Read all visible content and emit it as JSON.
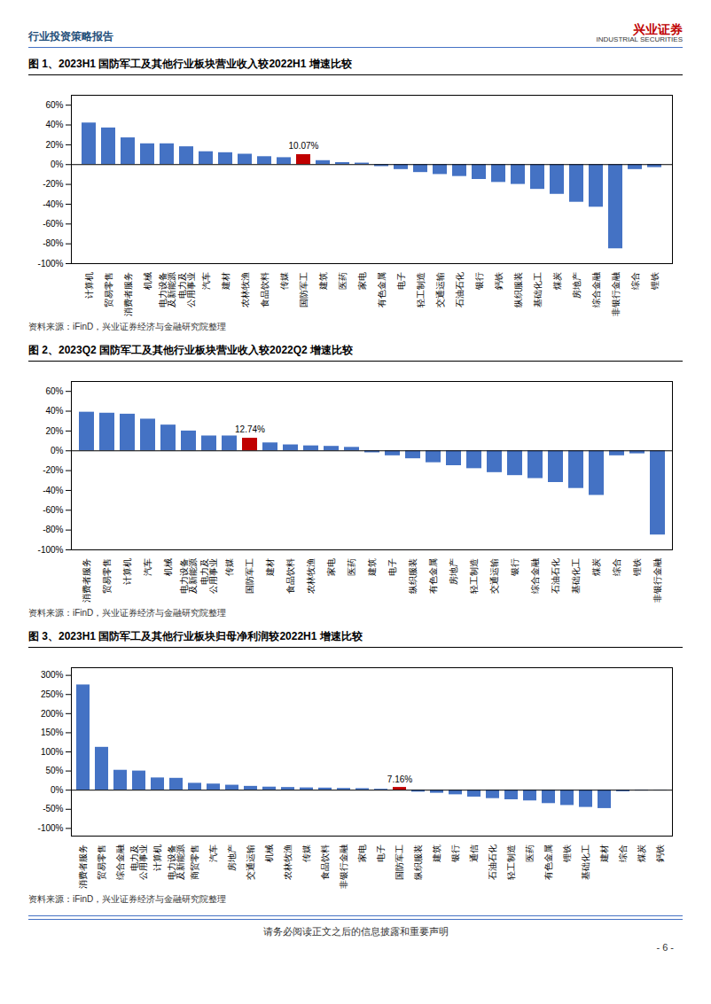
{
  "header": "行业投资策略报告",
  "logo": [
    "兴业证券",
    "INDUSTRIAL SECURITIES"
  ],
  "footer": "请务必阅读正文之后的信息披露和重要声明",
  "page_number": "- 6 -",
  "chart_data": [
    {
      "type": "bar",
      "title": "图 1、2023H1 国防军工及其他行业板块营业收入较2022H1 增速比较",
      "source": "资料来源：iFinD，兴业证券经济与金融研究院整理",
      "categories": [
        "计算机",
        "贸易零售",
        "消费者服务",
        "机械",
        "电力设备\n及新能源",
        "电力及\n公用事业",
        "汽车",
        "建材",
        "农林牧渔",
        "食品饮料",
        "传媒",
        "国防军工",
        "建筑",
        "医药",
        "家电",
        "有色金属",
        "电子",
        "轻工制造",
        "交通运输",
        "石油石化",
        "银行",
        "鈣铁",
        "纵织服装",
        "基础化工",
        "煤炭",
        "房地产",
        "综合金融",
        "非银行金融",
        "综合",
        "锂铁"
      ],
      "values": [
        42,
        37,
        27,
        21,
        21,
        18,
        13,
        12,
        10.5,
        8,
        7,
        10.07,
        4,
        2,
        1.5,
        -2,
        -5,
        -8,
        -10,
        -12,
        -15,
        -18,
        -20,
        -25,
        -30,
        -38,
        -43,
        -85,
        -5,
        -3
      ],
      "colors": [
        "#4472c4",
        "#4472c4",
        "#4472c4",
        "#4472c4",
        "#4472c4",
        "#4472c4",
        "#4472c4",
        "#4472c4",
        "#4472c4",
        "#4472c4",
        "#4472c4",
        "#c00000",
        "#4472c4",
        "#4472c4",
        "#4472c4",
        "#4472c4",
        "#4472c4",
        "#4472c4",
        "#4472c4",
        "#4472c4",
        "#4472c4",
        "#4472c4",
        "#4472c4",
        "#4472c4",
        "#4472c4",
        "#4472c4",
        "#4472c4",
        "#4472c4",
        "#4472c4",
        "#4472c4"
      ],
      "annotations": [
        {
          "text": "10.07%",
          "category": "国防军工"
        }
      ],
      "ylim": [
        -100,
        70
      ],
      "yticks": [
        {
          "value": -100,
          "label": "-100%"
        },
        {
          "value": -80,
          "label": "-80%"
        },
        {
          "value": -60,
          "label": "-60%"
        },
        {
          "value": -40,
          "label": "-40%"
        },
        {
          "value": -20,
          "label": "-20%"
        },
        {
          "value": 0,
          "label": "0%"
        },
        {
          "value": 20,
          "label": "20%"
        },
        {
          "value": 40,
          "label": "40%"
        },
        {
          "value": 60,
          "label": "60%"
        }
      ],
      "grid": false
    },
    {
      "type": "bar",
      "title": "图 2、2023Q2 国防军工及其他行业板块营业收入较2022Q2 增速比较",
      "source": "资料来源：iFinD，兴业证券经济与金融研究院整理",
      "categories": [
        "消费者服务",
        "贸易零售",
        "计算机",
        "汽车",
        "机械",
        "电力设备\n及新能源",
        "电力及\n公用事业",
        "传媒",
        "国防军工",
        "建材",
        "食品饮料",
        "农林牧渔",
        "家电",
        "医药",
        "建筑",
        "电子",
        "纵织服装",
        "有色金属",
        "房地产",
        "轻工制造",
        "交通运输",
        "银行",
        "综合金融",
        "石油石化",
        "基础化工",
        "煤炭",
        "综合",
        "锂铁",
        "非银行金融"
      ],
      "values": [
        39,
        38,
        37,
        32,
        26,
        20,
        15,
        15,
        12.74,
        8,
        6,
        5,
        4.5,
        3.5,
        -2,
        -5,
        -8,
        -12,
        -15,
        -18,
        -22,
        -25,
        -28,
        -32,
        -38,
        -45,
        -5,
        -3,
        -85
      ],
      "colors": [
        "#4472c4",
        "#4472c4",
        "#4472c4",
        "#4472c4",
        "#4472c4",
        "#4472c4",
        "#4472c4",
        "#4472c4",
        "#c00000",
        "#4472c4",
        "#4472c4",
        "#4472c4",
        "#4472c4",
        "#4472c4",
        "#4472c4",
        "#4472c4",
        "#4472c4",
        "#4472c4",
        "#4472c4",
        "#4472c4",
        "#4472c4",
        "#4472c4",
        "#4472c4",
        "#4472c4",
        "#4472c4",
        "#4472c4",
        "#4472c4",
        "#4472c4",
        "#4472c4"
      ],
      "annotations": [
        {
          "text": "12.74%",
          "category": "国防军工"
        }
      ],
      "ylim": [
        -100,
        70
      ],
      "yticks": [
        {
          "value": -100,
          "label": "-100%"
        },
        {
          "value": -80,
          "label": "-80%"
        },
        {
          "value": -60,
          "label": "-60%"
        },
        {
          "value": -40,
          "label": "-40%"
        },
        {
          "value": -20,
          "label": "-20%"
        },
        {
          "value": 0,
          "label": "0%"
        },
        {
          "value": 20,
          "label": "20%"
        },
        {
          "value": 40,
          "label": "40%"
        },
        {
          "value": 60,
          "label": "60%"
        }
      ],
      "grid": false
    },
    {
      "type": "bar",
      "title": "图 3、2023H1 国防军工及其他行业板块归母净利润较2022H1 增速比较",
      "source": "资料来源：iFinD，兴业证券经济与金融研究院整理",
      "categories": [
        "消费者服务",
        "贸易零售",
        "综合金融",
        "电力及\n公用事业",
        "计算机",
        "电力设备\n及新能源",
        "商贸零售",
        "汽车",
        "房地产",
        "交通运输",
        "机械",
        "农林牧渔",
        "传媒",
        "食品饮料",
        "非银行金融",
        "家电",
        "电子",
        "国防军工",
        "纵织服装",
        "建筑",
        "银行",
        "通信",
        "石油石化",
        "轻工制造",
        "医药",
        "有色金属",
        "锂铁",
        "基础化工",
        "建材",
        "综合",
        "煤炭",
        "鈣铁"
      ],
      "values": [
        275,
        112,
        52,
        50,
        32,
        31,
        18,
        16,
        13,
        10,
        8,
        7,
        6,
        5.5,
        4.5,
        4,
        2.5,
        7.16,
        -5,
        -8,
        -12,
        -18,
        -22,
        -25,
        -28,
        -35,
        -40,
        -45,
        -48,
        -4,
        -2,
        -1
      ],
      "colors": [
        "#4472c4",
        "#4472c4",
        "#4472c4",
        "#4472c4",
        "#4472c4",
        "#4472c4",
        "#4472c4",
        "#4472c4",
        "#4472c4",
        "#4472c4",
        "#4472c4",
        "#4472c4",
        "#4472c4",
        "#4472c4",
        "#4472c4",
        "#4472c4",
        "#4472c4",
        "#c00000",
        "#4472c4",
        "#4472c4",
        "#4472c4",
        "#4472c4",
        "#4472c4",
        "#4472c4",
        "#4472c4",
        "#4472c4",
        "#4472c4",
        "#4472c4",
        "#4472c4",
        "#4472c4",
        "#4472c4",
        "#4472c4"
      ],
      "annotations": [
        {
          "text": "7.16%",
          "category": "国防军工"
        }
      ],
      "ylim": [
        -120,
        320
      ],
      "yticks": [
        {
          "value": -100,
          "label": "-100%"
        },
        {
          "value": -50,
          "label": "-50%"
        },
        {
          "value": 0,
          "label": "0%"
        },
        {
          "value": 50,
          "label": "50%"
        },
        {
          "value": 100,
          "label": "100%"
        },
        {
          "value": 150,
          "label": "150%"
        },
        {
          "value": 200,
          "label": "200%"
        },
        {
          "value": 250,
          "label": "250%"
        },
        {
          "value": 300,
          "label": "300%"
        }
      ],
      "grid": false
    }
  ]
}
